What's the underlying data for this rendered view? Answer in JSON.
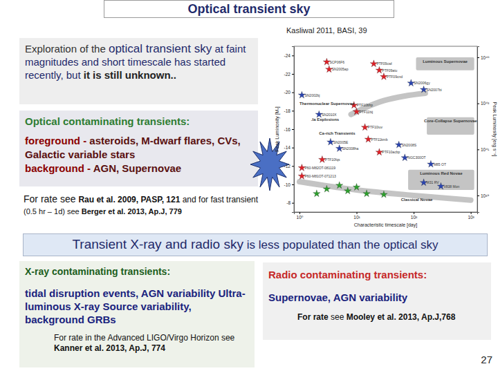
{
  "title": "Optical transient sky",
  "citation": "Kasliwal 2011, BASI, 39",
  "intro": [
    "Exploration of the ",
    "optical transient sky",
    " at faint magnitudes and short timescale has started recently, but ",
    "it is still unknown.."
  ],
  "optical_box": {
    "heading": "Optical contaminating transients:",
    "items": [
      {
        "label": "foreground - ",
        "text": "asteroids, M-dwarf flares, CVs, Galactic variable stars"
      },
      {
        "label": "background - ",
        "text": "AGN, Supernovae"
      }
    ]
  },
  "optical_rate": {
    "line1": [
      "For rate see ",
      "Rau et al. 2009, PASP, 121",
      " and for  fast transient"
    ],
    "line2": [
      "(0.5 hr – 1d) see ",
      "Berger et al. 2013, Ap.J, 779"
    ]
  },
  "banner": [
    "Transient X-ray and radio sky",
    " is less populated  than the optical sky"
  ],
  "xray_box": {
    "heading": "X-ray contaminating transients:",
    "text": "tidal disruption events, AGN variability Ultra-luminous X-ray Source variability, background GRBs",
    "rate": [
      "For rate",
      " in the Advanced LIGO/Virgo Horizon see ",
      "Kanner et al. 2013, Ap.J, 774"
    ]
  },
  "radio_box": {
    "heading": "Radio contaminating transients:",
    "text": "Supernovae, AGN variability",
    "rate": [
      "For rate",
      " see ",
      "Mooley et al. 2013, Ap.J,768"
    ]
  },
  "page_number": "27",
  "chart_data": {
    "type": "scatter",
    "x_label": "Characteristic timescale [day]",
    "y_label": "Peak Luminosity [Mᵥ]",
    "y2_label": "Peak Luminosity [erg s⁻¹]",
    "log": "x",
    "xlim": [
      0.8,
      1300
    ],
    "xticks": [
      {
        "value": 1,
        "label": "10⁰"
      },
      {
        "value": 10,
        "label": "10¹"
      },
      {
        "value": 100,
        "label": "10²"
      },
      {
        "value": 1000,
        "label": "10³"
      }
    ],
    "ylim": [
      -7,
      -25
    ],
    "yticks": [
      -24,
      -22,
      -20,
      -18,
      -16,
      -14,
      -12,
      -10,
      -8
    ],
    "y2lim": [
      38.28,
      45.48
    ],
    "y2ticks": [
      {
        "value": 39,
        "label": "10³⁹"
      },
      {
        "value": 41,
        "label": "10⁴¹"
      },
      {
        "value": 43,
        "label": "10⁴³"
      },
      {
        "value": 45,
        "label": "10⁴⁵"
      }
    ],
    "series": [
      {
        "color": "#e01f26",
        "marker": "star",
        "labels": [
          "SCP06F6",
          "SN2005ap",
          "PTF09cwl",
          "PTF09atu",
          "PTF09cnd",
          "PTF10bhp",
          "PTF11bij",
          "PTF10iuv",
          "PTF11kmb",
          "PTF10fqs",
          "PTF10acbp",
          "P60-M81OT-071213",
          "P60-M82OT-081119"
        ],
        "x": [
          3,
          3.3,
          20,
          25,
          30,
          9,
          10,
          14,
          16,
          2.5,
          25,
          1.1,
          1.1
        ],
        "values": [
          -23.3,
          -22.5,
          -23.1,
          -22.4,
          -21.7,
          -18.6,
          -17.9,
          -16.2,
          -14.9,
          -12.7,
          -13.5,
          -10.9,
          -11.8
        ]
      },
      {
        "color": "#2a44b0",
        "marker": "star",
        "labels": [
          "SN2002bj",
          "SN2010X",
          "SN2005E",
          "SN2008ha",
          "SN2006gy",
          "SN2007bi",
          "SN2008S",
          "NGC300OT",
          "M85 OT",
          "M31 RV",
          "V838 Mon"
        ],
        "x": [
          1.1,
          2.2,
          3.5,
          5,
          90,
          150,
          55,
          70,
          200,
          150,
          300
        ],
        "values": [
          -19.7,
          -17.6,
          -14.6,
          -13.9,
          -21.0,
          -20.3,
          -14.3,
          -12.9,
          -12.2,
          -10.2,
          -9.8
        ]
      },
      {
        "color": "#2ca02c",
        "marker": "star",
        "x": [
          2,
          3,
          5,
          7,
          10,
          15,
          30
        ],
        "values": [
          -9.0,
          -9.5,
          -9.9,
          -9.3,
          -9.7,
          -9.0,
          -8.9
        ]
      }
    ],
    "regions": [
      {
        "type": "box",
        "name": "Luminous Supernovae",
        "x": [
          110,
          1150
        ],
        "y": [
          -23.8,
          -22.4
        ]
      },
      {
        "type": "box",
        "name": "Core-Collapse Supernovae",
        "x": [
          170,
          1150
        ],
        "y": [
          -17.3,
          -15.4
        ]
      },
      {
        "type": "box",
        "name": "Luminous Red Novae",
        "x": [
          80,
          1150
        ],
        "y": [
          -11.6,
          -9.4
        ]
      },
      {
        "type": "band",
        "x": [
          8,
          15,
          30,
          70,
          160
        ],
        "y": [
          -17.6,
          -18.4,
          -19.1,
          -19.6,
          -19.9
        ]
      },
      {
        "type": "band",
        "x": [
          1,
          10,
          100,
          1000
        ],
        "y": [
          -10.3,
          -9.4,
          -8.8,
          -8.3
        ]
      }
    ],
    "annotations": [
      {
        "text": "Thermonuclear Supernovae",
        "x": 1.0,
        "y": -18.6
      },
      {
        "text": ".Ia Explosions",
        "x": 1.6,
        "y": -16.9
      },
      {
        "text": "Ca-rich Transients",
        "x": 2.2,
        "y": -15.4
      },
      {
        "text": "Classical Novae",
        "x": 60,
        "y": -8.2
      }
    ]
  }
}
